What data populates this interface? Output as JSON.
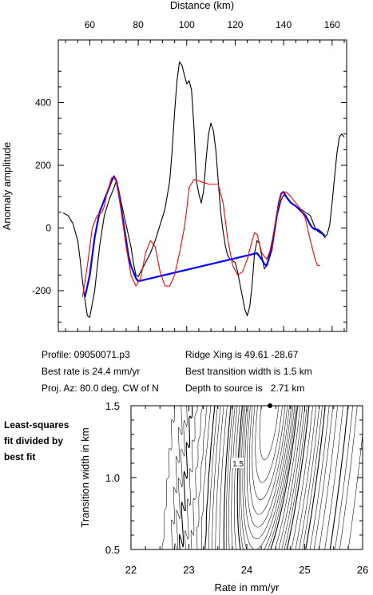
{
  "info": {
    "profile": "Profile: 09050071.p3",
    "best_rate": "Best rate is 24.4 mm/yr",
    "proj_az": "Proj. Az: 80.0 deg. CW of N",
    "ridge_xing": "Ridge Xing is 49.61 -28.67",
    "best_width": "Best transition width is 1.5 km",
    "depth": "Depth to source is   2.71 km"
  },
  "side_note": [
    "Least-squares",
    "fit divided by",
    "best fit"
  ],
  "colors": {
    "observed": "#0000ff",
    "model": "#ff0000",
    "profile": "#000000",
    "best_point": "#000000"
  },
  "chart_data": [
    {
      "type": "line",
      "xlabel": "Distance (km)",
      "ylabel": "Anomaly amplitude",
      "x_axis_position": "top",
      "xlim": [
        47,
        166
      ],
      "ylim": [
        -330,
        600
      ],
      "xticks": [
        60,
        80,
        100,
        120,
        140,
        160
      ],
      "yticks": [
        -200,
        0,
        200,
        400
      ],
      "grid": false,
      "legend": "none",
      "series": [
        {
          "color": "#000000",
          "x": [
            49,
            51,
            53,
            55,
            56,
            57,
            58,
            59,
            60,
            62,
            64,
            66,
            68,
            70,
            71,
            72,
            73,
            75,
            77,
            78,
            79,
            80,
            81,
            83,
            85,
            87,
            89,
            91,
            93,
            94,
            95,
            96,
            97,
            98,
            99,
            100,
            101,
            102,
            103,
            104,
            105,
            106,
            107,
            108,
            109,
            110,
            111,
            112,
            113,
            114,
            115,
            116,
            117,
            118,
            119,
            120,
            121,
            122,
            123,
            124,
            125,
            126,
            127,
            128,
            129,
            130,
            131,
            132,
            133,
            135,
            137,
            139,
            140,
            141,
            143,
            145,
            147,
            149,
            151,
            152,
            153,
            154,
            155,
            156,
            157,
            158,
            159,
            160,
            161,
            162,
            163,
            164,
            165
          ],
          "y": [
            48,
            40,
            15,
            -40,
            -100,
            -170,
            -230,
            -280,
            -285,
            -200,
            -60,
            40,
            90,
            130,
            150,
            120,
            80,
            10,
            -60,
            -110,
            -150,
            -155,
            -140,
            -110,
            -80,
            -40,
            10,
            60,
            150,
            250,
            370,
            470,
            530,
            520,
            490,
            460,
            470,
            440,
            320,
            150,
            110,
            80,
            120,
            220,
            300,
            335,
            310,
            250,
            150,
            50,
            -10,
            -60,
            -90,
            -100,
            -105,
            -110,
            -140,
            -180,
            -220,
            -260,
            -280,
            -250,
            -180,
            -80,
            -40,
            -50,
            -90,
            -130,
            -120,
            -50,
            30,
            90,
            105,
            100,
            80,
            70,
            60,
            50,
            40,
            20,
            0,
            -10,
            -15,
            -20,
            -30,
            -20,
            10,
            80,
            160,
            240,
            290,
            300,
            290
          ]
        },
        {
          "color": "#0000ff",
          "x": [
            58,
            60,
            62,
            64,
            66,
            68,
            69,
            70,
            71,
            72,
            73,
            74,
            75,
            76,
            77,
            79,
            80,
            129,
            131,
            132,
            133,
            135,
            137,
            138,
            139,
            140,
            141,
            143,
            145,
            147,
            149,
            150,
            151,
            152,
            153,
            154,
            155,
            157
          ],
          "y": [
            -220,
            -150,
            -30,
            50,
            90,
            130,
            150,
            165,
            150,
            110,
            60,
            10,
            -40,
            -90,
            -120,
            -160,
            -170,
            -80,
            -100,
            -115,
            -120,
            -70,
            30,
            80,
            110,
            115,
            100,
            80,
            70,
            55,
            40,
            25,
            10,
            0,
            -5,
            -5,
            -10,
            -25
          ]
        },
        {
          "color": "#ff0000",
          "x": [
            57,
            59,
            61,
            63,
            65,
            66,
            67,
            69,
            70,
            71,
            72,
            73,
            75,
            77,
            79,
            81,
            83,
            85,
            87,
            89,
            91,
            93,
            95,
            97,
            99,
            100,
            101,
            103,
            105,
            107,
            109,
            111,
            113,
            115,
            117,
            119,
            121,
            123,
            125,
            127,
            128,
            129,
            131,
            133,
            135,
            137,
            139,
            141,
            143,
            145,
            147,
            149,
            151,
            153,
            154,
            155
          ],
          "y": [
            -220,
            -120,
            0,
            40,
            50,
            70,
            110,
            160,
            165,
            150,
            110,
            50,
            -60,
            -150,
            -185,
            -160,
            -80,
            -40,
            -60,
            -140,
            -185,
            -185,
            -150,
            -80,
            0,
            60,
            130,
            155,
            150,
            145,
            140,
            140,
            140,
            80,
            -40,
            -120,
            -150,
            -140,
            -100,
            -40,
            -15,
            -20,
            -80,
            -100,
            -60,
            40,
            110,
            115,
            100,
            80,
            60,
            30,
            -40,
            -100,
            -120,
            -120
          ]
        }
      ]
    },
    {
      "type": "contour",
      "xlabel": "Rate in mm/yr",
      "ylabel": "Transition width in km",
      "xlim": [
        22,
        26
      ],
      "ylim": [
        0.5,
        1.5
      ],
      "xticks": [
        22,
        23,
        24,
        25,
        26
      ],
      "yticks": [
        0.5,
        1.0,
        1.5
      ],
      "grid": false,
      "contour_label": "1.5",
      "best_fit_point": {
        "x": 24.4,
        "y": 1.5
      },
      "levels": [
        1.05,
        1.1,
        1.15,
        1.2,
        1.25,
        1.3,
        1.35,
        1.4,
        1.45,
        1.5,
        1.6,
        1.7,
        1.8,
        1.9,
        2.0,
        2.2,
        2.4,
        2.6,
        2.8,
        3.0,
        3.3,
        3.6,
        4.0,
        4.5,
        5.0,
        5.5,
        6.0,
        7.0
      ]
    }
  ]
}
